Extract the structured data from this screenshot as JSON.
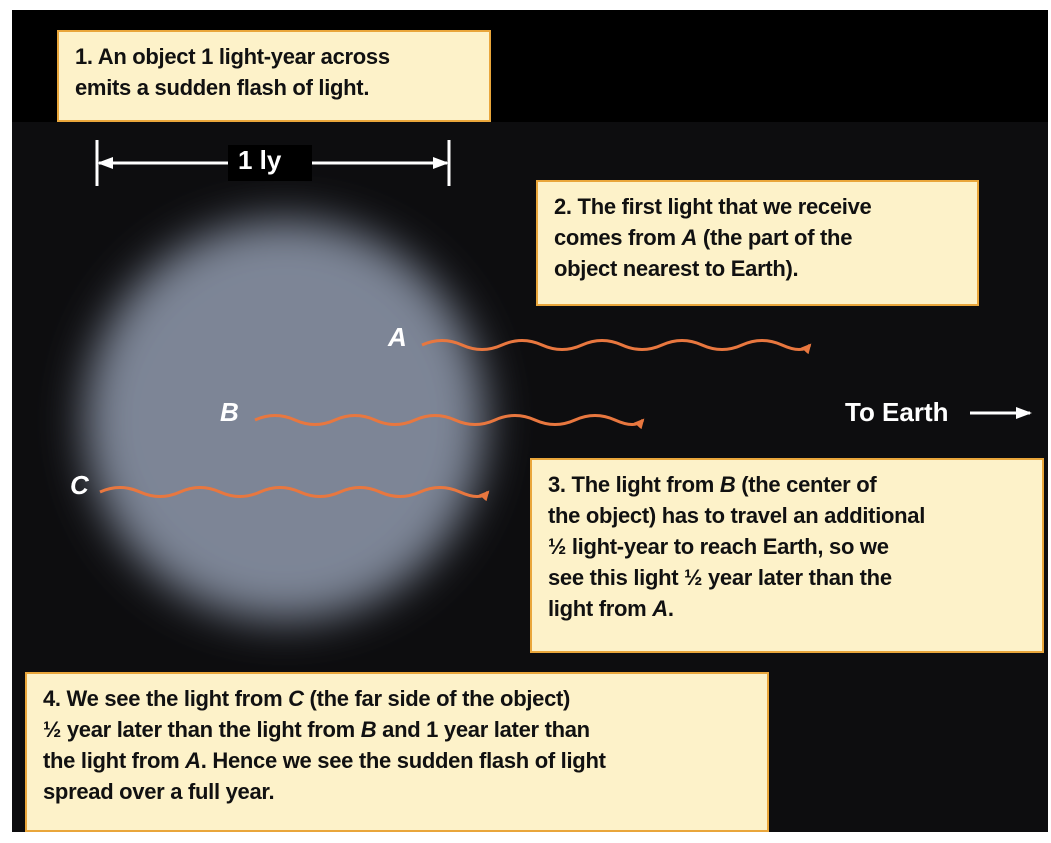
{
  "scale_label": "1 ly",
  "points": [
    {
      "label": "A"
    },
    {
      "label": "B"
    },
    {
      "label": "C"
    }
  ],
  "to_earth": "To Earth",
  "boxes": [
    {
      "lines": [
        [
          "1. An object 1 light-year across"
        ],
        [
          "emits a sudden flash of light."
        ]
      ]
    },
    {
      "lines": [
        [
          "2. The first light that we receive"
        ],
        [
          "comes from ",
          "A",
          " (the part of the"
        ],
        [
          "object nearest to Earth)."
        ]
      ]
    },
    {
      "lines": [
        [
          "3. The light from ",
          "B",
          " (the center of"
        ],
        [
          "the object) has to travel an additional"
        ],
        [
          "½ light-year to reach Earth, so we"
        ],
        [
          "see this light ½ year later than the"
        ],
        [
          "light from ",
          "A",
          "."
        ]
      ]
    },
    {
      "lines": [
        [
          "4. We see the light from ",
          "C",
          " (the far side of the object)"
        ],
        [
          "½ year later than the light from ",
          "B",
          " and 1 year later than"
        ],
        [
          "the light from ",
          "A",
          ". Hence we see the sudden flash of light"
        ],
        [
          "spread over a full year."
        ]
      ]
    }
  ]
}
